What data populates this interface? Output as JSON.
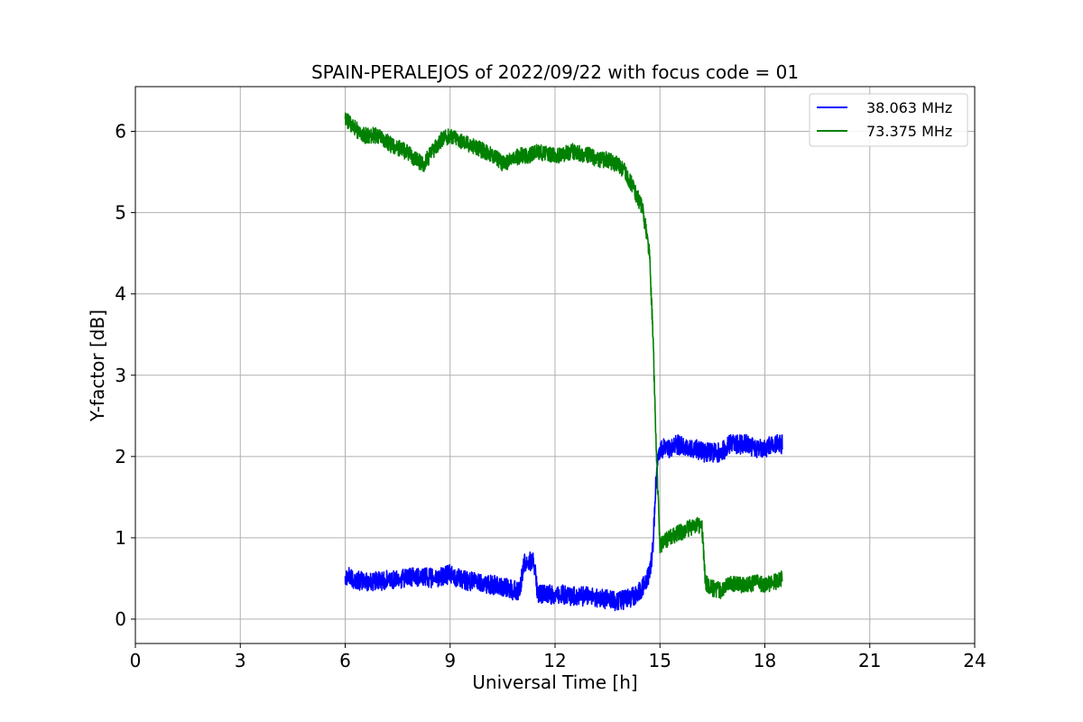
{
  "chart_data": {
    "type": "line",
    "title": "SPAIN-PERALEJOS of 2022/09/22 with focus code = 01",
    "xlabel": "Universal Time [h]",
    "ylabel": "Y-factor [dB]",
    "xlim": [
      0,
      24
    ],
    "ylim": [
      -0.3,
      6.55
    ],
    "xticks": [
      0,
      3,
      6,
      9,
      12,
      15,
      18,
      21,
      24
    ],
    "yticks": [
      0,
      1,
      2,
      3,
      4,
      5,
      6
    ],
    "grid": true,
    "legend_position": "top-right",
    "series": [
      {
        "name": "38.063 MHz",
        "color": "#0000ff",
        "x": [
          6.0,
          6.25,
          6.5,
          6.75,
          7.0,
          7.25,
          7.5,
          7.75,
          8.0,
          8.25,
          8.5,
          8.75,
          9.0,
          9.25,
          9.5,
          9.75,
          10.0,
          10.25,
          10.5,
          10.75,
          11.0,
          11.1,
          11.25,
          11.4,
          11.5,
          11.75,
          12.0,
          12.25,
          12.5,
          12.75,
          13.0,
          13.25,
          13.5,
          13.75,
          14.0,
          14.25,
          14.5,
          14.7,
          14.8,
          14.9,
          15.0,
          15.25,
          15.5,
          15.75,
          16.0,
          16.25,
          16.5,
          16.75,
          17.0,
          17.25,
          17.5,
          17.75,
          18.0,
          18.25,
          18.5
        ],
        "y": [
          0.55,
          0.48,
          0.47,
          0.46,
          0.47,
          0.48,
          0.5,
          0.5,
          0.52,
          0.52,
          0.5,
          0.52,
          0.55,
          0.5,
          0.47,
          0.46,
          0.44,
          0.42,
          0.4,
          0.36,
          0.34,
          0.7,
          0.72,
          0.7,
          0.3,
          0.3,
          0.3,
          0.3,
          0.28,
          0.28,
          0.28,
          0.25,
          0.24,
          0.22,
          0.24,
          0.28,
          0.38,
          0.55,
          0.9,
          1.8,
          2.1,
          2.1,
          2.15,
          2.1,
          2.1,
          2.05,
          2.05,
          2.05,
          2.15,
          2.15,
          2.15,
          2.1,
          2.1,
          2.15,
          2.15
        ],
        "noise": 0.12
      },
      {
        "name": "73.375 MHz",
        "color": "#008000",
        "x": [
          6.0,
          6.25,
          6.5,
          6.75,
          7.0,
          7.25,
          7.5,
          7.75,
          8.0,
          8.25,
          8.5,
          8.75,
          9.0,
          9.25,
          9.5,
          9.75,
          10.0,
          10.25,
          10.5,
          10.75,
          11.0,
          11.25,
          11.5,
          11.75,
          12.0,
          12.25,
          12.5,
          12.75,
          13.0,
          13.25,
          13.5,
          13.75,
          14.0,
          14.25,
          14.4,
          14.5,
          14.6,
          14.7,
          14.8,
          14.9,
          15.0,
          15.25,
          15.5,
          15.75,
          16.0,
          16.2,
          16.3,
          16.5,
          16.75,
          17.0,
          17.25,
          17.5,
          17.75,
          18.0,
          18.25,
          18.5
        ],
        "y": [
          6.15,
          6.05,
          5.95,
          5.95,
          5.95,
          5.85,
          5.8,
          5.75,
          5.65,
          5.6,
          5.75,
          5.9,
          5.95,
          5.9,
          5.85,
          5.8,
          5.75,
          5.7,
          5.6,
          5.65,
          5.7,
          5.7,
          5.75,
          5.72,
          5.7,
          5.72,
          5.75,
          5.72,
          5.7,
          5.65,
          5.65,
          5.6,
          5.5,
          5.3,
          5.15,
          5.05,
          4.8,
          4.5,
          3.5,
          2.0,
          0.9,
          1.0,
          1.05,
          1.1,
          1.15,
          1.15,
          0.45,
          0.38,
          0.35,
          0.45,
          0.42,
          0.42,
          0.45,
          0.42,
          0.45,
          0.5
        ],
        "noise": 0.1
      }
    ]
  }
}
